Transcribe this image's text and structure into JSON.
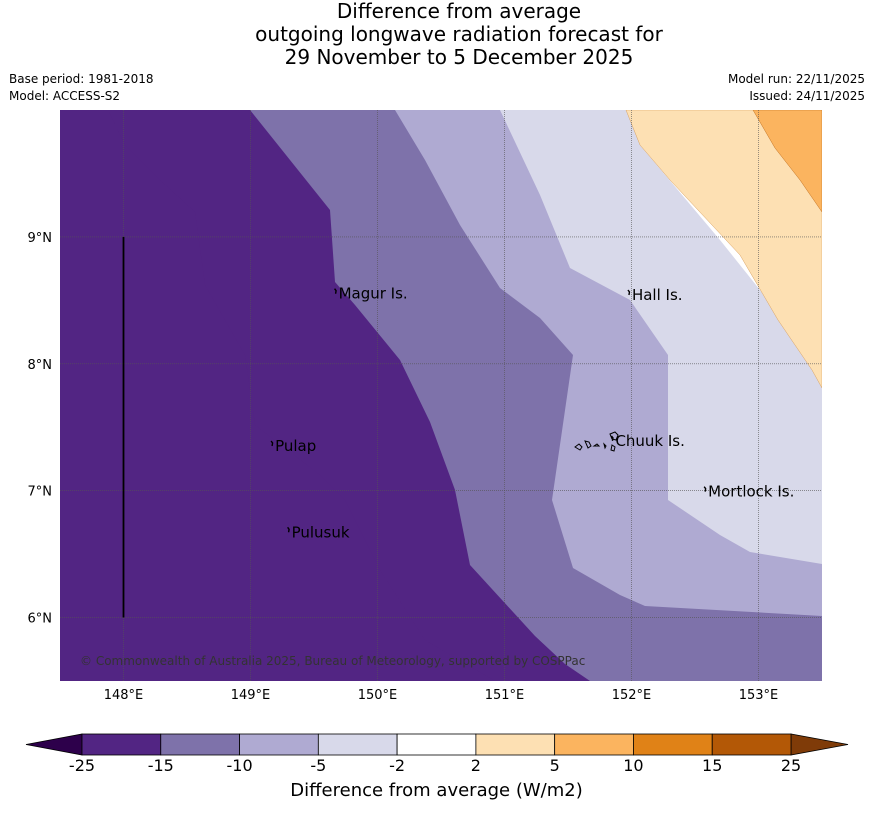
{
  "title": {
    "line1": "Difference from average",
    "line2": "outgoing longwave radiation forecast for",
    "line3": "29 November to 5 December 2025"
  },
  "meta": {
    "base_period": "Base period: 1981-2018",
    "model": "Model: ACCESS-S2",
    "model_run": "Model run: 22/11/2025",
    "issued": "Issued: 24/11/2025"
  },
  "map": {
    "lon_range": [
      147.5,
      153.5
    ],
    "lat_range": [
      5.5,
      10.0
    ],
    "lon_ticks": [
      {
        "value": 148,
        "label": "148°E"
      },
      {
        "value": 149,
        "label": "149°E"
      },
      {
        "value": 150,
        "label": "150°E"
      },
      {
        "value": 151,
        "label": "151°E"
      },
      {
        "value": 152,
        "label": "152°E"
      },
      {
        "value": 153,
        "label": "153°E"
      }
    ],
    "lat_ticks": [
      {
        "value": 9,
        "label": "9°N"
      },
      {
        "value": 8,
        "label": "8°N"
      },
      {
        "value": 7,
        "label": "7°N"
      },
      {
        "value": 6,
        "label": "6°N"
      }
    ],
    "islands": [
      {
        "name": "Magur Is.",
        "lon": 149.67,
        "lat": 8.56
      },
      {
        "name": "Hall Is.",
        "lon": 151.98,
        "lat": 8.55
      },
      {
        "name": "Pulap",
        "lon": 149.17,
        "lat": 7.36
      },
      {
        "name": "Chuuk Is.",
        "lon": 151.85,
        "lat": 7.4
      },
      {
        "name": "Mortlock Is.",
        "lon": 152.58,
        "lat": 7.0
      },
      {
        "name": "Pulusuk",
        "lon": 149.3,
        "lat": 6.68
      }
    ],
    "copyright": "© Commonwealth of Australia 2025, Bureau of Meteorology, supported by COSPPac",
    "meridian_line_lon": 148,
    "meridian_line_lat_range": [
      6.0,
      9.0
    ],
    "contour_fill_colors": {
      "lt_minus15": "#522583",
      "minus15_minus10": "#7e72aa",
      "minus10_minus5": "#afaad2",
      "minus5_minus2": "#d8d9ea",
      "minus2_2": "#ffffff",
      "2_5": "#fde0b3",
      "5_10": "#fbb45f"
    }
  },
  "colorbar": {
    "title": "Difference from average (W/m2)",
    "levels": [
      "-25",
      "-15",
      "-10",
      "-5",
      "-2",
      "2",
      "5",
      "10",
      "15",
      "25"
    ],
    "colors": [
      "#522583",
      "#7e72aa",
      "#afaad2",
      "#d8d9ea",
      "#ffffff",
      "#fde0b3",
      "#fbb45f",
      "#e08217",
      "#b35806"
    ],
    "under_color": "#2d004b",
    "over_color": "#7f3b08"
  }
}
